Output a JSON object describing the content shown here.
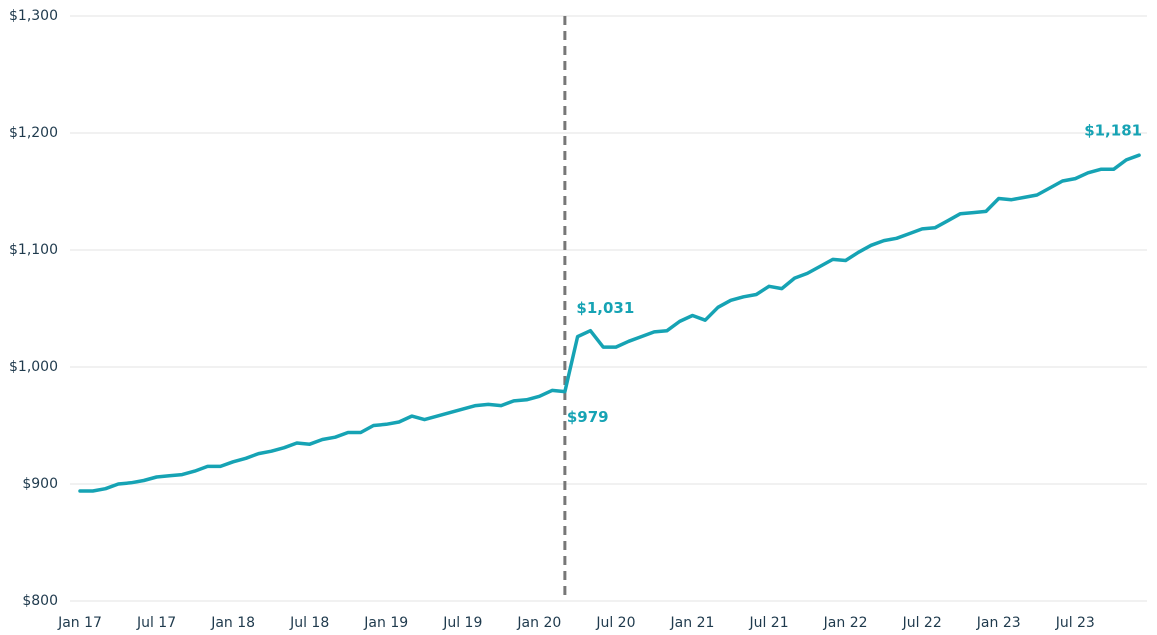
{
  "chart_data": {
    "type": "line",
    "categories": [
      "Jan 17",
      null,
      null,
      null,
      null,
      null,
      "Jul 17",
      null,
      null,
      null,
      null,
      null,
      "Jan 18",
      null,
      null,
      null,
      null,
      null,
      "Jul 18",
      null,
      null,
      null,
      null,
      null,
      "Jan 19",
      null,
      null,
      null,
      null,
      null,
      "Jul 19",
      null,
      null,
      null,
      null,
      null,
      "Jan 20",
      null,
      null,
      null,
      null,
      null,
      "Jul 20",
      null,
      null,
      null,
      null,
      null,
      "Jan 21",
      null,
      null,
      null,
      null,
      null,
      "Jul 21",
      null,
      null,
      null,
      null,
      null,
      "Jan 22",
      null,
      null,
      null,
      null,
      null,
      "Jul 22",
      null,
      null,
      null,
      null,
      null,
      "Jan 23",
      null,
      null,
      null,
      null,
      null,
      "Jul 23",
      null,
      null,
      null,
      null,
      null
    ],
    "series": [
      {
        "color": "#16a3b4",
        "values": [
          894,
          894,
          896,
          900,
          901,
          903,
          906,
          907,
          908,
          911,
          915,
          915,
          919,
          922,
          926,
          928,
          931,
          935,
          934,
          938,
          940,
          944,
          944,
          950,
          951,
          953,
          958,
          955,
          958,
          961,
          964,
          967,
          968,
          967,
          971,
          972,
          975,
          980,
          979,
          1026,
          1031,
          1017,
          1017,
          1022,
          1026,
          1030,
          1031,
          1039,
          1044,
          1040,
          1051,
          1057,
          1060,
          1062,
          1069,
          1067,
          1076,
          1080,
          1086,
          1092,
          1091,
          1098,
          1104,
          1108,
          1110,
          1114,
          1118,
          1119,
          1125,
          1131,
          1132,
          1133,
          1144,
          1143,
          1145,
          1147,
          1153,
          1159,
          1161,
          1166,
          1169,
          1169,
          1177,
          1181
        ],
        "value_labels": [
          null,
          null,
          null,
          null,
          null,
          null,
          null,
          null,
          null,
          null,
          null,
          null,
          null,
          null,
          null,
          null,
          null,
          null,
          null,
          null,
          null,
          null,
          null,
          null,
          null,
          null,
          null,
          null,
          null,
          null,
          null,
          null,
          null,
          null,
          null,
          null,
          null,
          null,
          "$979",
          null,
          "$1,031",
          null,
          null,
          null,
          null,
          null,
          null,
          null,
          null,
          null,
          null,
          null,
          null,
          null,
          null,
          null,
          null,
          null,
          null,
          null,
          null,
          null,
          null,
          null,
          null,
          null,
          null,
          null,
          null,
          null,
          null,
          null,
          null,
          null,
          null,
          null,
          null,
          null,
          null,
          null,
          null,
          null,
          null,
          "$1,181"
        ]
      }
    ],
    "ylim": [
      800,
      1300
    ],
    "yticks": [
      {
        "value": 800,
        "label": "$800"
      },
      {
        "value": 900,
        "label": "$900"
      },
      {
        "value": 1000,
        "label": "$1,000"
      },
      {
        "value": 1100,
        "label": "$1,100"
      },
      {
        "value": 1200,
        "label": "$1,200"
      },
      {
        "value": 1300,
        "label": "$1,300"
      }
    ],
    "grid": true,
    "vline_index": 38
  }
}
